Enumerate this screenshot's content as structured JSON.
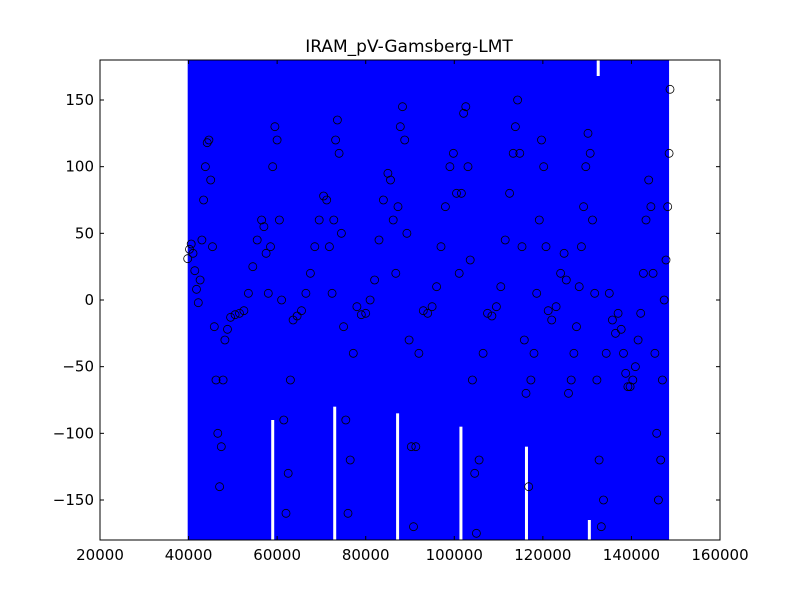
{
  "chart_data": {
    "type": "scatter",
    "title": "IRAM_pV-Gamsberg-LMT",
    "xlabel": "",
    "ylabel": "",
    "xlim": [
      20000,
      160000
    ],
    "ylim": [
      -180,
      180
    ],
    "x_ticks": [
      20000,
      40000,
      60000,
      80000,
      100000,
      120000,
      140000,
      160000
    ],
    "x_tick_labels": [
      "20000",
      "40000",
      "60000",
      "80000",
      "100000",
      "120000",
      "140000",
      "160000"
    ],
    "y_ticks": [
      -150,
      -100,
      -50,
      0,
      50,
      100,
      150
    ],
    "y_tick_labels": [
      "−150",
      "−100",
      "−50",
      "0",
      "50",
      "100",
      "150"
    ],
    "grid": false,
    "legend": "none",
    "colors": {
      "error_bars": "#0000ff",
      "markers_edge": "#000000"
    },
    "error_band": {
      "x_start": 39800,
      "x_end": 148500,
      "y_min": -180,
      "y_max": 180
    },
    "band_gaps": [
      {
        "x": 59000,
        "y_top": -90
      },
      {
        "x": 73000,
        "y_top": -80
      },
      {
        "x": 87200,
        "y_top": -85
      },
      {
        "x": 101500,
        "y_top": -95
      },
      {
        "x": 116300,
        "y_top": -110
      },
      {
        "x": 130500,
        "y_top": -165
      },
      {
        "x": 132500,
        "y_bottom": 168
      }
    ],
    "series": [
      {
        "points": [
          [
            39800,
            31
          ],
          [
            40200,
            38
          ],
          [
            40600,
            42
          ],
          [
            41000,
            35
          ],
          [
            41400,
            22
          ],
          [
            41800,
            8
          ],
          [
            42200,
            -2
          ],
          [
            42600,
            15
          ],
          [
            43000,
            45
          ],
          [
            43400,
            75
          ],
          [
            43800,
            100
          ],
          [
            44200,
            118
          ],
          [
            44600,
            120
          ],
          [
            45000,
            90
          ],
          [
            45400,
            40
          ],
          [
            45800,
            -20
          ],
          [
            46200,
            -60
          ],
          [
            46600,
            -100
          ],
          [
            47000,
            -140
          ],
          [
            47400,
            -110
          ],
          [
            47800,
            -60
          ],
          [
            48200,
            -30
          ],
          [
            48800,
            -22
          ],
          [
            49500,
            -13
          ],
          [
            50500,
            -11
          ],
          [
            51500,
            -10
          ],
          [
            52500,
            -8
          ],
          [
            53500,
            5
          ],
          [
            54500,
            25
          ],
          [
            55500,
            45
          ],
          [
            56500,
            60
          ],
          [
            57000,
            55
          ],
          [
            57500,
            35
          ],
          [
            58000,
            5
          ],
          [
            58500,
            40
          ],
          [
            59000,
            100
          ],
          [
            59500,
            130
          ],
          [
            60000,
            120
          ],
          [
            60500,
            60
          ],
          [
            61000,
            0
          ],
          [
            61500,
            -90
          ],
          [
            62000,
            -160
          ],
          [
            62500,
            -130
          ],
          [
            63000,
            -60
          ],
          [
            63600,
            -15
          ],
          [
            64500,
            -12
          ],
          [
            65500,
            -8
          ],
          [
            66500,
            5
          ],
          [
            67500,
            20
          ],
          [
            68500,
            40
          ],
          [
            69500,
            60
          ],
          [
            70500,
            78
          ],
          [
            71200,
            75
          ],
          [
            71800,
            40
          ],
          [
            72400,
            5
          ],
          [
            72800,
            60
          ],
          [
            73200,
            120
          ],
          [
            73600,
            135
          ],
          [
            74000,
            110
          ],
          [
            74500,
            50
          ],
          [
            75000,
            -20
          ],
          [
            75500,
            -90
          ],
          [
            76000,
            -160
          ],
          [
            76500,
            -120
          ],
          [
            77200,
            -40
          ],
          [
            78000,
            -5
          ],
          [
            79000,
            -11
          ],
          [
            80000,
            -10
          ],
          [
            81000,
            0
          ],
          [
            82000,
            15
          ],
          [
            83000,
            45
          ],
          [
            84000,
            75
          ],
          [
            85000,
            95
          ],
          [
            85600,
            90
          ],
          [
            86200,
            60
          ],
          [
            86800,
            20
          ],
          [
            87300,
            70
          ],
          [
            87800,
            130
          ],
          [
            88300,
            145
          ],
          [
            88800,
            120
          ],
          [
            89300,
            50
          ],
          [
            89800,
            -30
          ],
          [
            90300,
            -110
          ],
          [
            90800,
            -170
          ],
          [
            91300,
            -110
          ],
          [
            92000,
            -40
          ],
          [
            93000,
            -8
          ],
          [
            94000,
            -10
          ],
          [
            95000,
            -5
          ],
          [
            96000,
            10
          ],
          [
            97000,
            40
          ],
          [
            98000,
            70
          ],
          [
            99000,
            100
          ],
          [
            99800,
            110
          ],
          [
            100500,
            80
          ],
          [
            101100,
            20
          ],
          [
            101600,
            80
          ],
          [
            102100,
            140
          ],
          [
            102600,
            145
          ],
          [
            103100,
            100
          ],
          [
            103600,
            30
          ],
          [
            104100,
            -60
          ],
          [
            104600,
            -130
          ],
          [
            105000,
            -175
          ],
          [
            105600,
            -120
          ],
          [
            106500,
            -40
          ],
          [
            107500,
            -10
          ],
          [
            108500,
            -12
          ],
          [
            109500,
            -5
          ],
          [
            110500,
            10
          ],
          [
            111500,
            45
          ],
          [
            112500,
            80
          ],
          [
            113300,
            110
          ],
          [
            113800,
            130
          ],
          [
            114300,
            150
          ],
          [
            114800,
            110
          ],
          [
            115300,
            40
          ],
          [
            115800,
            -30
          ],
          [
            116200,
            -70
          ],
          [
            116800,
            -140
          ],
          [
            117300,
            -60
          ],
          [
            118000,
            -40
          ],
          [
            118600,
            5
          ],
          [
            119200,
            60
          ],
          [
            119700,
            120
          ],
          [
            120200,
            100
          ],
          [
            120700,
            40
          ],
          [
            121200,
            -8
          ],
          [
            122000,
            -15
          ],
          [
            123000,
            -5
          ],
          [
            124000,
            20
          ],
          [
            124800,
            35
          ],
          [
            125300,
            15
          ],
          [
            125800,
            -70
          ],
          [
            126400,
            -60
          ],
          [
            127000,
            -40
          ],
          [
            127600,
            -20
          ],
          [
            128200,
            10
          ],
          [
            128700,
            40
          ],
          [
            129200,
            70
          ],
          [
            129700,
            100
          ],
          [
            130200,
            125
          ],
          [
            130700,
            110
          ],
          [
            131200,
            60
          ],
          [
            131700,
            5
          ],
          [
            132200,
            -60
          ],
          [
            132700,
            -120
          ],
          [
            133200,
            -170
          ],
          [
            133700,
            -150
          ],
          [
            134300,
            -40
          ],
          [
            135000,
            5
          ],
          [
            135700,
            -15
          ],
          [
            136400,
            -25
          ],
          [
            137000,
            -10
          ],
          [
            137700,
            -22
          ],
          [
            138200,
            -40
          ],
          [
            138700,
            -55
          ],
          [
            139200,
            -65
          ],
          [
            139700,
            -65
          ],
          [
            140300,
            -60
          ],
          [
            140900,
            -50
          ],
          [
            141500,
            -30
          ],
          [
            142100,
            -10
          ],
          [
            142700,
            20
          ],
          [
            143300,
            60
          ],
          [
            143900,
            90
          ],
          [
            144400,
            70
          ],
          [
            144900,
            20
          ],
          [
            145300,
            -40
          ],
          [
            145700,
            -100
          ],
          [
            146100,
            -150
          ],
          [
            146600,
            -120
          ],
          [
            147000,
            -60
          ],
          [
            147400,
            0
          ],
          [
            147800,
            30
          ],
          [
            148200,
            70
          ],
          [
            148500,
            110
          ],
          [
            148700,
            158
          ]
        ]
      }
    ]
  }
}
